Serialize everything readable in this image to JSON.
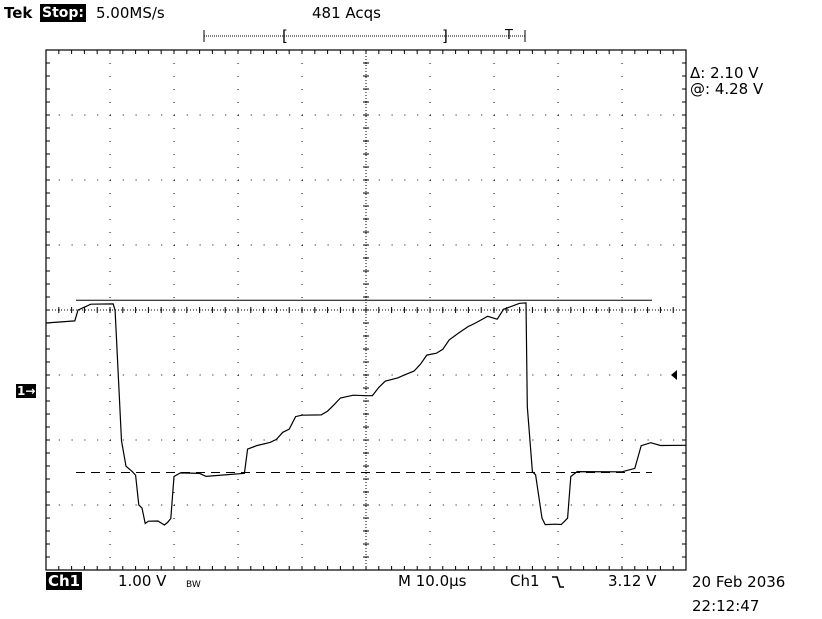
{
  "header": {
    "brand": "Tek",
    "status": "Stop:",
    "sample_rate": "5.00MS/s",
    "acquisitions": "481 Acqs",
    "trigger_marker": "T",
    "record_open": "[",
    "record_close": "]"
  },
  "cursor_readout": {
    "delta": "Δ: 2.10 V",
    "at": "@: 4.28 V"
  },
  "channel_marker": "1→",
  "footer": {
    "channel": "Ch1",
    "volts_per_div": "1.00 V",
    "bw_limit": "BW",
    "timebase": "M 10.0µs",
    "trigger_source": "Ch1",
    "trigger_slope_icon": "falling-edge-icon",
    "trigger_level": "3.12 V",
    "date": "20 Feb 2036",
    "time": "22:12:47"
  },
  "display": {
    "divisions_x": 10,
    "divisions_y": 8,
    "trace_color": "#000000",
    "grid_color": "#000000"
  },
  "waveform": {
    "units_x": "divisions",
    "units_y": "divisions",
    "cursor1_div": 3.6,
    "cursor2_div": 1.5,
    "points": [
      [
        0,
        3.8
      ],
      [
        0.45,
        3.85
      ],
      [
        0.5,
        4.0
      ],
      [
        0.7,
        4.1
      ],
      [
        1.05,
        4.1
      ],
      [
        1.08,
        4.0
      ],
      [
        1.18,
        2.0
      ],
      [
        1.25,
        1.6
      ],
      [
        1.35,
        1.5
      ],
      [
        1.4,
        1.45
      ],
      [
        1.45,
        1.0
      ],
      [
        1.5,
        0.95
      ],
      [
        1.55,
        0.7
      ],
      [
        1.6,
        0.75
      ],
      [
        1.75,
        0.75
      ],
      [
        1.85,
        0.7
      ],
      [
        1.9,
        0.75
      ],
      [
        1.95,
        0.8
      ],
      [
        2.0,
        1.45
      ],
      [
        2.1,
        1.5
      ],
      [
        2.4,
        1.5
      ],
      [
        2.5,
        1.45
      ],
      [
        3.1,
        1.5
      ],
      [
        3.15,
        1.85
      ],
      [
        3.3,
        1.9
      ],
      [
        3.5,
        1.95
      ],
      [
        3.6,
        2.0
      ],
      [
        3.7,
        2.1
      ],
      [
        3.8,
        2.15
      ],
      [
        3.9,
        2.35
      ],
      [
        4.0,
        2.4
      ],
      [
        4.3,
        2.4
      ],
      [
        4.4,
        2.45
      ],
      [
        4.5,
        2.55
      ],
      [
        4.6,
        2.65
      ],
      [
        4.8,
        2.7
      ],
      [
        5.0,
        2.7
      ],
      [
        5.1,
        2.7
      ],
      [
        5.2,
        2.8
      ],
      [
        5.3,
        2.9
      ],
      [
        5.5,
        2.95
      ],
      [
        5.6,
        3.0
      ],
      [
        5.75,
        3.05
      ],
      [
        5.85,
        3.15
      ],
      [
        5.95,
        3.3
      ],
      [
        6.1,
        3.35
      ],
      [
        6.2,
        3.4
      ],
      [
        6.3,
        3.55
      ],
      [
        6.45,
        3.65
      ],
      [
        6.6,
        3.75
      ],
      [
        6.7,
        3.8
      ],
      [
        6.8,
        3.85
      ],
      [
        6.9,
        3.9
      ],
      [
        7.05,
        3.85
      ],
      [
        7.15,
        4.0
      ],
      [
        7.4,
        4.1
      ],
      [
        7.5,
        4.1
      ],
      [
        7.52,
        2.5
      ],
      [
        7.6,
        1.5
      ],
      [
        7.65,
        1.45
      ],
      [
        7.75,
        0.8
      ],
      [
        7.8,
        0.7
      ],
      [
        7.95,
        0.72
      ],
      [
        8.05,
        0.7
      ],
      [
        8.1,
        0.75
      ],
      [
        8.15,
        0.8
      ],
      [
        8.2,
        1.45
      ],
      [
        8.3,
        1.5
      ],
      [
        9.0,
        1.5
      ],
      [
        9.2,
        1.55
      ],
      [
        9.3,
        1.9
      ],
      [
        9.45,
        1.95
      ],
      [
        9.6,
        1.9
      ],
      [
        10,
        1.9
      ]
    ]
  }
}
